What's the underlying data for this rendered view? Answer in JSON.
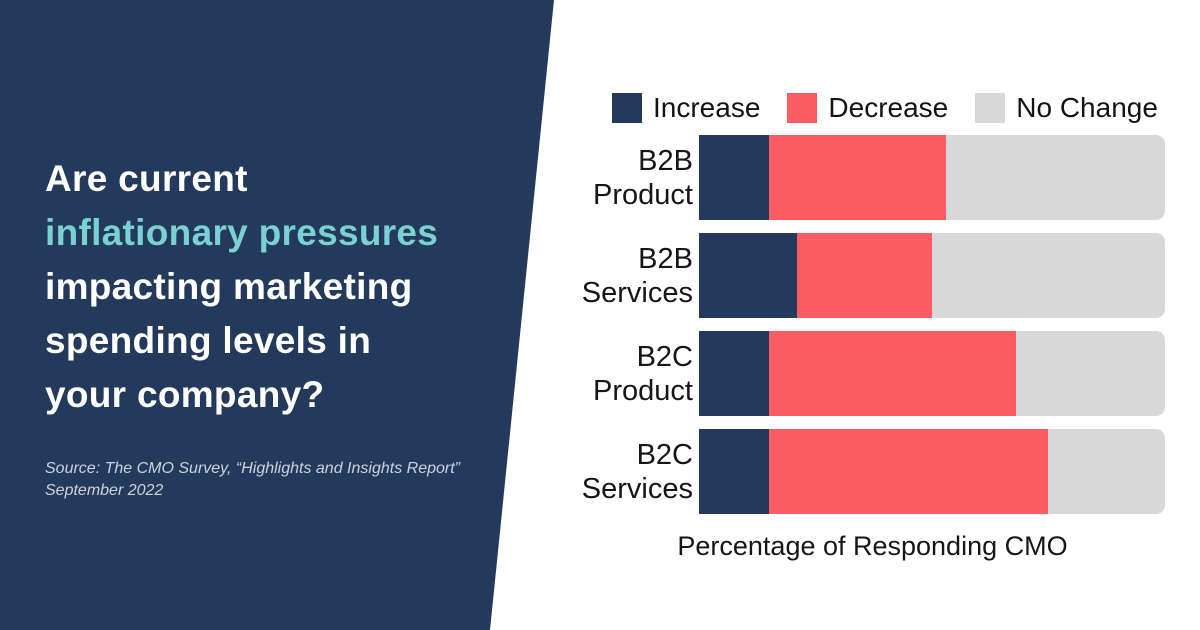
{
  "panel": {
    "background": "#233a5c",
    "headline": [
      {
        "text": "Are current",
        "color": "#ffffff"
      },
      {
        "text": "inflationary pressures",
        "color": "#7ad1d1"
      },
      {
        "text": "impacting marketing",
        "color": "#ffffff"
      },
      {
        "text": "spending levels in",
        "color": "#ffffff"
      },
      {
        "text": "your company?",
        "color": "#ffffff"
      }
    ],
    "source_line1": "Source: The CMO Survey, “Highlights and Insights Report”",
    "source_line2": "September 2022"
  },
  "chart_data": {
    "type": "bar",
    "orientation": "horizontal",
    "stacked": true,
    "categories": [
      "B2B Product",
      "B2B Services",
      "B2C Product",
      "B2C Services"
    ],
    "series": [
      {
        "name": "Increase",
        "color": "#233a5c",
        "values": [
          15,
          21,
          15,
          15
        ]
      },
      {
        "name": "Decrease",
        "color": "#fb5d63",
        "values": [
          38,
          29,
          53,
          60
        ]
      },
      {
        "name": "No Change",
        "color": "#d7d8d7",
        "values": [
          47,
          50,
          32,
          25
        ]
      }
    ],
    "xlabel": "Percentage of Responding CMO",
    "xlim": [
      0,
      100
    ],
    "legend_position": "top",
    "grid": false
  }
}
